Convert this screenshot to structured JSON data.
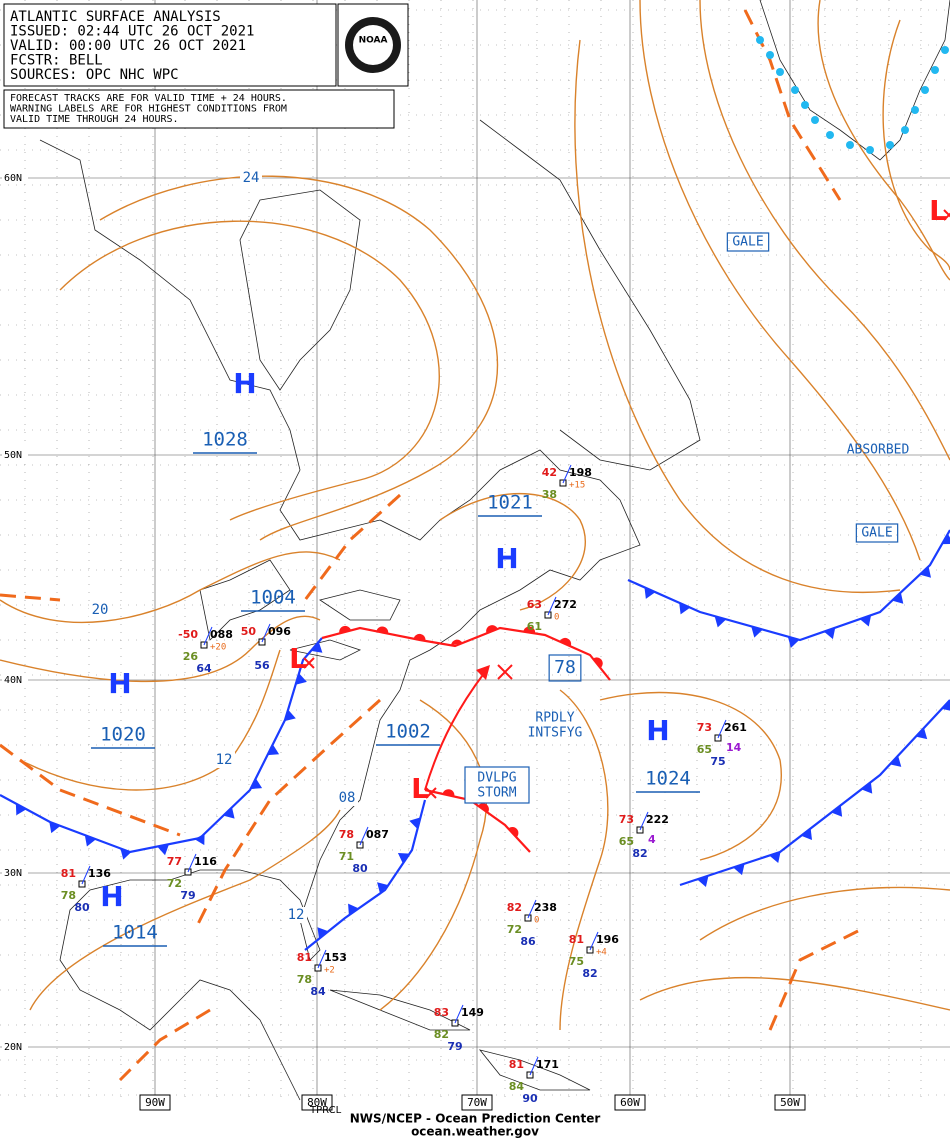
{
  "header": {
    "lines": [
      "ATLANTIC SURFACE ANALYSIS",
      "ISSUED: 02:44 UTC 26 OCT 2021",
      "VALID:  00:00 UTC 26 OCT 2021",
      "FCSTR:  BELL",
      "SOURCES: OPC NHC WPC"
    ]
  },
  "logo": "NOAA",
  "warning": {
    "lines": [
      "FORECAST TRACKS ARE FOR VALID TIME + 24 HOURS.",
      "WARNING LABELS ARE FOR HIGHEST CONDITIONS FROM",
      "VALID TIME THROUGH 24 HOURS."
    ]
  },
  "lat_labels": [
    "60N",
    "50N",
    "40N",
    "30N",
    "20N"
  ],
  "lon_labels": [
    "90W",
    "80W",
    "70W",
    "60W",
    "50W"
  ],
  "centers": [
    {
      "symbol": "H",
      "pressure": "1028"
    },
    {
      "symbol": "H",
      "pressure": "1020"
    },
    {
      "symbol": "H",
      "pressure": "1014"
    },
    {
      "symbol": "H",
      "pressure": "1021"
    },
    {
      "symbol": "H",
      "pressure": "1024"
    },
    {
      "symbol": "L",
      "pressure": "1004"
    },
    {
      "symbol": "L",
      "pressure": "1002"
    },
    {
      "symbol": "L"
    }
  ],
  "boxed_labels": [
    "GALE",
    "GALE",
    "78"
  ],
  "storm_label": [
    "DVLPG",
    "STORM"
  ],
  "text_labels": [
    "ABSORBED",
    "RPDLY",
    "INTSFYG"
  ],
  "isobar_labels": [
    "24",
    "20",
    "12",
    "08",
    "12"
  ],
  "stations": [
    {
      "temp": "42",
      "dew": "38",
      "pressure": "198",
      "tendency": "+15"
    },
    {
      "temp": "63",
      "dew": "61",
      "pressure": "272",
      "tendency": "0"
    },
    {
      "temp": "73",
      "dew": "65",
      "pressure": "261",
      "extra": "14",
      "sst": "75"
    },
    {
      "temp": "73",
      "dew": "65",
      "pressure": "222",
      "extra": "4",
      "sst": "82"
    },
    {
      "temp": "82",
      "dew": "72",
      "pressure": "238",
      "tendency": "0",
      "sst": "86"
    },
    {
      "temp": "81",
      "dew": "75",
      "pressure": "196",
      "tendency": "+4",
      "sst": "82"
    },
    {
      "temp": "83",
      "dew": "82",
      "pressure": "149",
      "sst": "79"
    },
    {
      "temp": "81",
      "dew": "84",
      "pressure": "171",
      "sst": "90"
    },
    {
      "temp": "-50",
      "dew": "26",
      "pressure": "088",
      "tendency": "+20",
      "sst": "64"
    },
    {
      "temp": "50",
      "pressure": "096",
      "sst": "56"
    },
    {
      "temp": "81",
      "dew": "78",
      "pressure": "136",
      "sst": "80"
    },
    {
      "temp": "77",
      "dew": "72",
      "pressure": "116",
      "sst": "79"
    },
    {
      "temp": "78",
      "dew": "71",
      "pressure": "087",
      "sst": "80"
    },
    {
      "temp": "81",
      "dew": "78",
      "pressure": "153",
      "tendency": "+2",
      "sst": "84"
    }
  ],
  "footer": {
    "corner": "TPRCL",
    "line1": "NWS/NCEP - Ocean Prediction Center",
    "line2": "ocean.weather.gov"
  }
}
